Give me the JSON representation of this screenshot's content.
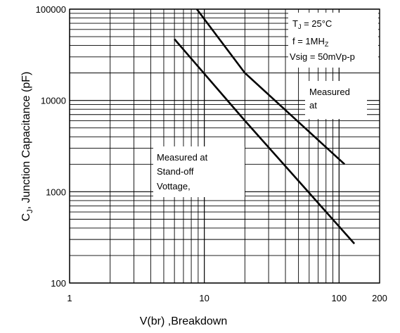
{
  "chart_data": {
    "type": "line",
    "title": "",
    "xlabel": "V(br) ,Breakdown",
    "ylabel_main": "C",
    "ylabel_sub": "J",
    "ylabel_rest": ", Junction  Capacitance (pF)",
    "x_scale": "log",
    "y_scale": "log",
    "xlim": [
      1,
      200
    ],
    "ylim": [
      100,
      100000
    ],
    "grid": true,
    "x_ticks": [
      {
        "value": 1,
        "label": "1"
      },
      {
        "value": 10,
        "label": "10"
      },
      {
        "value": 100,
        "label": "100"
      },
      {
        "value": 200,
        "label": "200"
      }
    ],
    "y_ticks": [
      {
        "value": 100,
        "label": "100"
      },
      {
        "value": 1000,
        "label": "1000"
      },
      {
        "value": 10000,
        "label": "10000"
      },
      {
        "value": 100000,
        "label": "100000"
      }
    ],
    "series": [
      {
        "x": [
          8.8,
          20,
          110
        ],
        "y": [
          100000,
          20000,
          2000
        ]
      },
      {
        "x": [
          6,
          20,
          130
        ],
        "y": [
          47000,
          6000,
          270
        ]
      }
    ],
    "annotations": {
      "conditions": {
        "tj_main": "T",
        "tj_sub": "J",
        "tj_rest": " = 25°C",
        "f_main": "f = 1MH",
        "f_sub": "Z",
        "vsig": "Vsig = 50mVp-p"
      },
      "measured_breakdown": [
        "Measured",
        "at"
      ],
      "measured_standoff": [
        "Measured at",
        "Stand-off",
        "Vottage,"
      ]
    }
  }
}
